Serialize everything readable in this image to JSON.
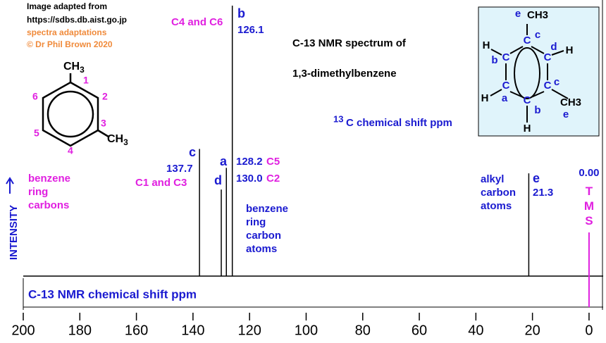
{
  "chart_data": {
    "type": "spectrum",
    "title": "C-13 NMR spectrum of",
    "subtitle": "1,3-dimethylbenzene",
    "x_axis_label": "C-13 NMR chemical shift  ppm",
    "y_axis_label": "INTENSITY",
    "xlim": [
      200,
      -5
    ],
    "xticks": [
      200,
      180,
      160,
      140,
      120,
      100,
      80,
      60,
      40,
      20,
      0
    ],
    "peaks": {
      "x": [
        137.7,
        130.0,
        128.2,
        126.1,
        21.3
      ],
      "x_labels": [
        "137.7",
        "130.0",
        "128.2",
        "126.1",
        "21.3"
      ],
      "values": [
        47,
        32,
        40,
        100,
        38
      ],
      "letters": [
        "c",
        "d",
        "a",
        "b",
        "e"
      ],
      "carbons": [
        "C1 and C3",
        "C2",
        "C5",
        "C4 and C6",
        null
      ],
      "color": "#000000"
    },
    "reference": {
      "x": 0,
      "x_label": "0.00",
      "name": "TMS",
      "color": "#e020e0"
    },
    "credits": [
      "Image adapted from",
      "https://sdbs.db.aist.go.jp"
    ],
    "adaptation": [
      "spectra adaptations",
      "© Dr Phil Brown 2020"
    ],
    "shift_note": {
      "sup": "13",
      "text": "C  chemical shift ppm"
    },
    "annotations": {
      "ring_carbons": [
        "benzene",
        "ring",
        "carbons"
      ],
      "ring_carbon_atoms": [
        "benzene",
        "ring",
        "carbon",
        "atoms"
      ],
      "alkyl_atoms": [
        "alkyl",
        "carbon",
        "atoms"
      ]
    },
    "structure": {
      "numbers": [
        "1",
        "2",
        "3",
        "4",
        "5",
        "6"
      ],
      "methyl": "CH",
      "methyl_sub": "3"
    },
    "detail_structure": {
      "labels": [
        "e",
        "CH3",
        "c",
        "C",
        "H",
        "b",
        "C",
        "C",
        "d",
        "H",
        "C",
        "a",
        "H",
        "C",
        "c",
        "CH3",
        "e",
        "C",
        "b",
        "H"
      ]
    }
  }
}
